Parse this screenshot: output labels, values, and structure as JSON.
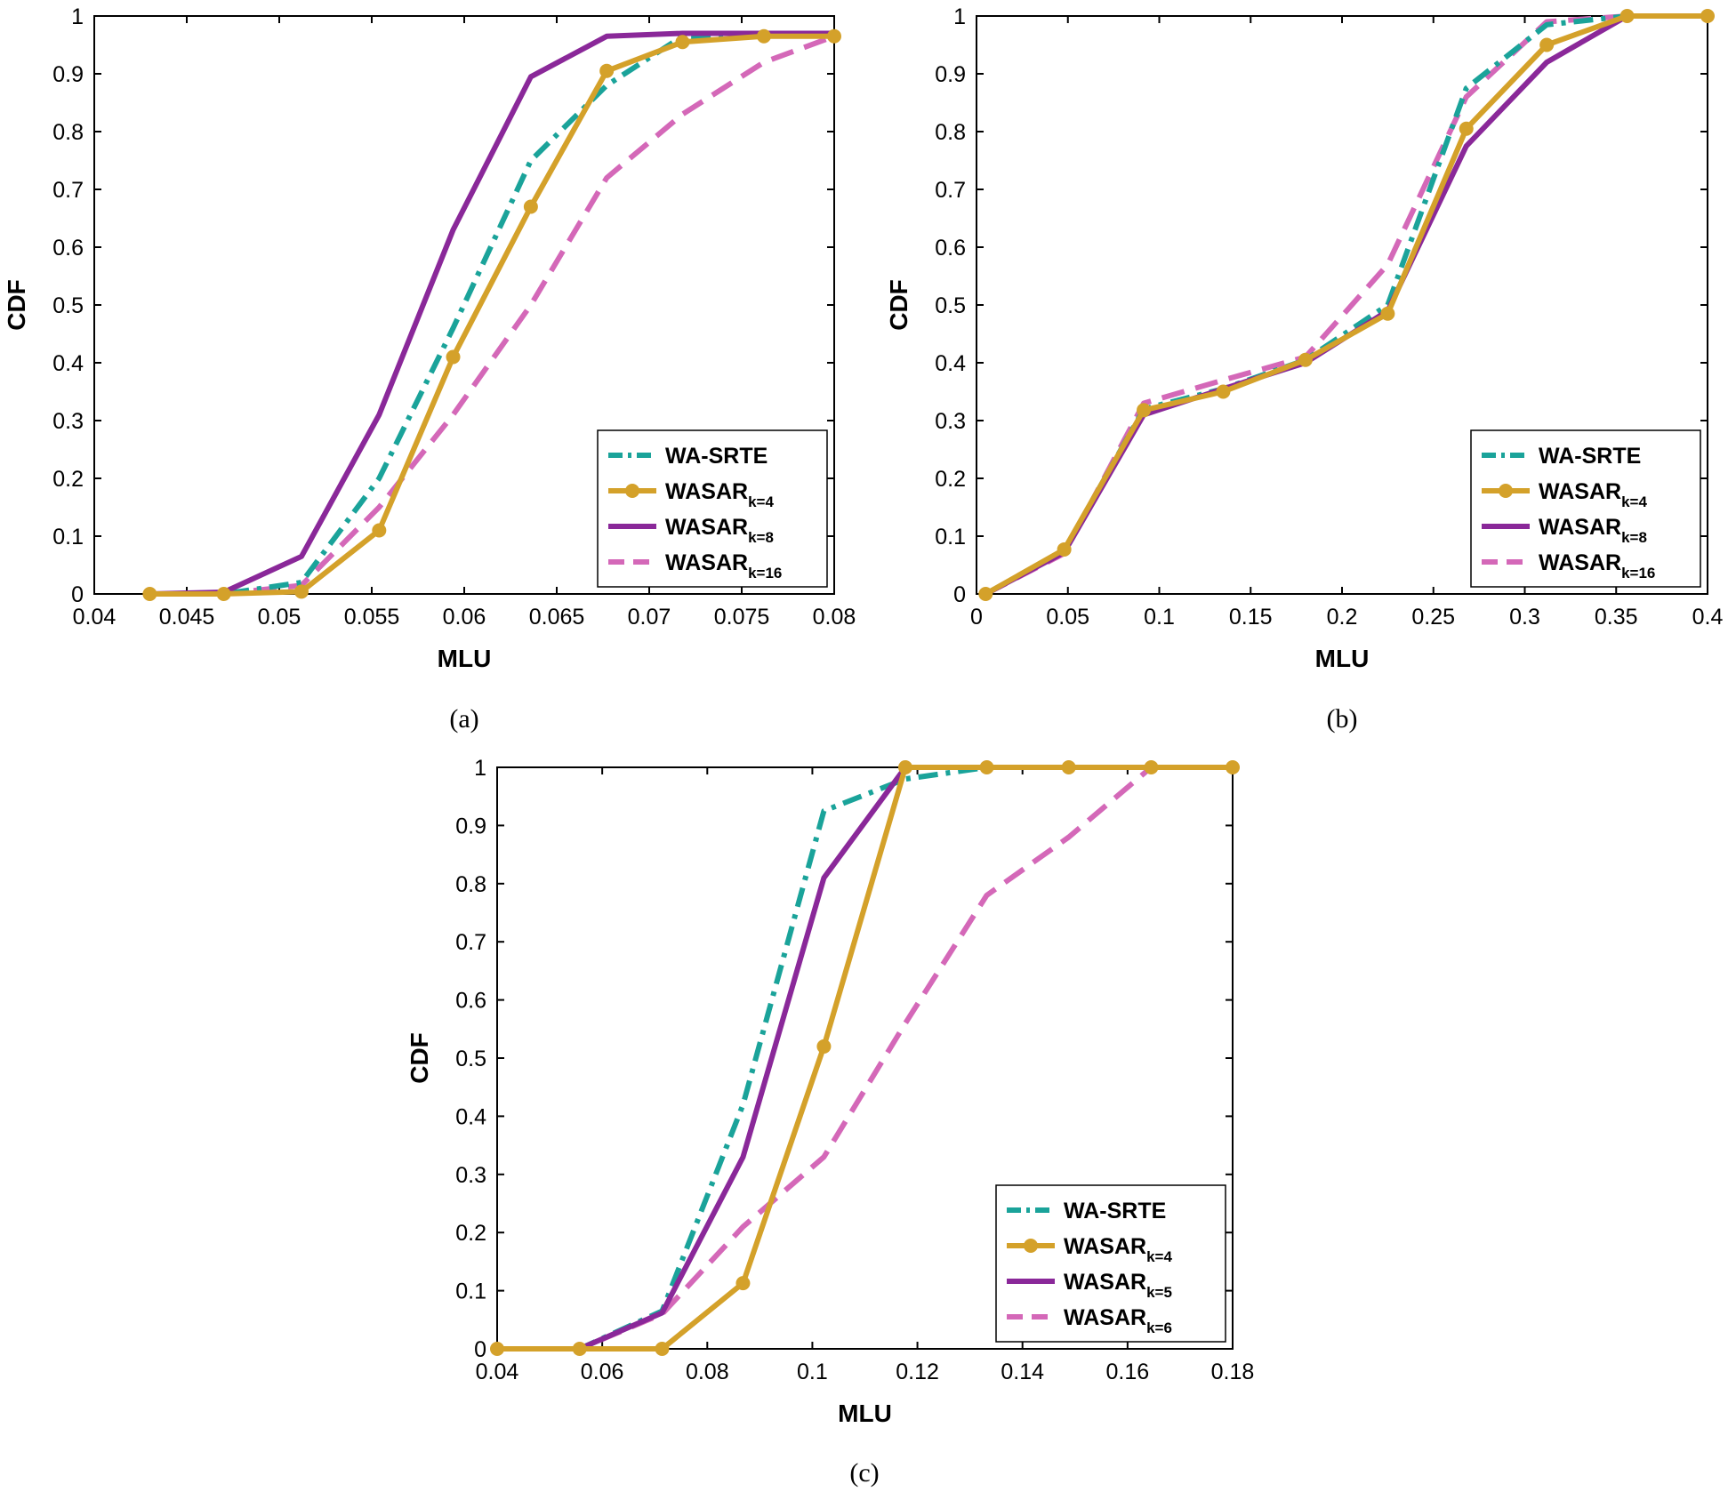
{
  "colors": {
    "wa_srte": "#1aa39a",
    "wasar_k4": "#d4a12a",
    "wasar_mid": "#8a2899",
    "wasar_high": "#d468b8"
  },
  "chart_data": [
    {
      "type": "line",
      "caption": "(a)",
      "xlabel": "MLU",
      "ylabel": "CDF",
      "xlim": [
        0.04,
        0.08
      ],
      "ylim": [
        0,
        1
      ],
      "xticks": [
        "0.04",
        "0.045",
        "0.05",
        "0.055",
        "0.06",
        "0.065",
        "0.07",
        "0.075",
        "0.08"
      ],
      "yticks": [
        "0",
        "0.1",
        "0.2",
        "0.3",
        "0.4",
        "0.5",
        "0.6",
        "0.7",
        "0.8",
        "0.9",
        "1"
      ],
      "legend_position": "bottom-right",
      "series": [
        {
          "name": "WA-SRTE",
          "sub": "",
          "style": "dashdot",
          "color_key": "wa_srte",
          "markers": false,
          "x": [
            0.043,
            0.047,
            0.0512,
            0.0554,
            0.0594,
            0.0636,
            0.0677,
            0.0718,
            0.0762,
            0.08
          ],
          "y": [
            0,
            0,
            0.02,
            0.2,
            0.46,
            0.75,
            0.88,
            0.965,
            0.965,
            0.97
          ]
        },
        {
          "name": "WASAR",
          "sub": "k=4",
          "style": "solid",
          "color_key": "wasar_k4",
          "markers": true,
          "x": [
            0.043,
            0.047,
            0.0512,
            0.0554,
            0.0594,
            0.0636,
            0.0677,
            0.0718,
            0.0762,
            0.08
          ],
          "y": [
            0,
            0,
            0.004,
            0.11,
            0.41,
            0.67,
            0.905,
            0.955,
            0.965,
            0.965
          ]
        },
        {
          "name": "WASAR",
          "sub": "k=8",
          "style": "solid",
          "color_key": "wasar_mid",
          "markers": false,
          "x": [
            0.043,
            0.047,
            0.0512,
            0.0554,
            0.0594,
            0.0636,
            0.0677,
            0.0718,
            0.0762,
            0.08
          ],
          "y": [
            0,
            0.003,
            0.065,
            0.31,
            0.63,
            0.895,
            0.965,
            0.97,
            0.97,
            0.97
          ]
        },
        {
          "name": "WASAR",
          "sub": "k=16",
          "style": "dash",
          "color_key": "wasar_high",
          "markers": false,
          "x": [
            0.043,
            0.047,
            0.0512,
            0.0554,
            0.0594,
            0.0636,
            0.0677,
            0.0718,
            0.0762,
            0.08
          ],
          "y": [
            0,
            0,
            0.015,
            0.15,
            0.31,
            0.5,
            0.72,
            0.83,
            0.92,
            0.965
          ]
        }
      ]
    },
    {
      "type": "line",
      "caption": "(b)",
      "xlabel": "MLU",
      "ylabel": "CDF",
      "xlim": [
        0,
        0.4
      ],
      "ylim": [
        0,
        1
      ],
      "xticks": [
        "0",
        "0.05",
        "0.1",
        "0.15",
        "0.2",
        "0.25",
        "0.3",
        "0.35",
        "0.4"
      ],
      "yticks": [
        "0",
        "0.1",
        "0.2",
        "0.3",
        "0.4",
        "0.5",
        "0.6",
        "0.7",
        "0.8",
        "0.9",
        "1"
      ],
      "legend_position": "bottom-right",
      "series": [
        {
          "name": "WA-SRTE",
          "sub": "",
          "style": "dashdot",
          "color_key": "wa_srte",
          "markers": false,
          "x": [
            0.005,
            0.048,
            0.0915,
            0.135,
            0.18,
            0.225,
            0.268,
            0.312,
            0.356,
            0.4
          ],
          "y": [
            0,
            0.075,
            0.32,
            0.355,
            0.405,
            0.5,
            0.875,
            0.985,
            1,
            1
          ]
        },
        {
          "name": "WASAR",
          "sub": "k=4",
          "style": "solid",
          "color_key": "wasar_k4",
          "markers": true,
          "x": [
            0.005,
            0.048,
            0.0915,
            0.135,
            0.18,
            0.225,
            0.268,
            0.312,
            0.356,
            0.4
          ],
          "y": [
            0,
            0.077,
            0.318,
            0.35,
            0.405,
            0.485,
            0.805,
            0.95,
            1,
            1
          ]
        },
        {
          "name": "WASAR",
          "sub": "k=8",
          "style": "solid",
          "color_key": "wasar_mid",
          "markers": false,
          "x": [
            0.005,
            0.048,
            0.0915,
            0.135,
            0.18,
            0.225,
            0.268,
            0.312,
            0.356,
            0.4
          ],
          "y": [
            0,
            0.072,
            0.31,
            0.355,
            0.4,
            0.49,
            0.775,
            0.92,
            1,
            1
          ]
        },
        {
          "name": "WASAR",
          "sub": "k=16",
          "style": "dash",
          "color_key": "wasar_high",
          "markers": false,
          "x": [
            0.005,
            0.048,
            0.0915,
            0.135,
            0.18,
            0.225,
            0.268,
            0.312,
            0.356,
            0.4
          ],
          "y": [
            0,
            0.07,
            0.33,
            0.37,
            0.41,
            0.57,
            0.86,
            0.99,
            1,
            1
          ]
        }
      ]
    },
    {
      "type": "line",
      "caption": "(c)",
      "xlabel": "MLU",
      "ylabel": "CDF",
      "xlim": [
        0.04,
        0.18
      ],
      "ylim": [
        0,
        1
      ],
      "xticks": [
        "0.04",
        "0.06",
        "0.08",
        "0.1",
        "0.12",
        "0.14",
        "0.16",
        "0.18"
      ],
      "yticks": [
        "0",
        "0.1",
        "0.2",
        "0.3",
        "0.4",
        "0.5",
        "0.6",
        "0.7",
        "0.8",
        "0.9",
        "1"
      ],
      "legend_position": "bottom-right",
      "series": [
        {
          "name": "WA-SRTE",
          "sub": "",
          "style": "dashdot",
          "color_key": "wa_srte",
          "markers": false,
          "x": [
            0.04,
            0.0557,
            0.0714,
            0.0868,
            0.1022,
            0.1177,
            0.1332,
            0.1488,
            0.1645,
            0.18
          ],
          "y": [
            0,
            0,
            0.065,
            0.42,
            0.925,
            0.98,
            1,
            1,
            1,
            1
          ]
        },
        {
          "name": "WASAR",
          "sub": "k=4",
          "style": "solid",
          "color_key": "wasar_k4",
          "markers": true,
          "x": [
            0.04,
            0.0557,
            0.0714,
            0.0868,
            0.1022,
            0.1177,
            0.1332,
            0.1488,
            0.1645,
            0.18
          ],
          "y": [
            0,
            0,
            0,
            0.113,
            0.52,
            1,
            1,
            1,
            1,
            1
          ]
        },
        {
          "name": "WASAR",
          "sub": "k=5",
          "style": "solid",
          "color_key": "wasar_mid",
          "markers": false,
          "x": [
            0.04,
            0.0557,
            0.0714,
            0.0868,
            0.1022,
            0.1177,
            0.1332,
            0.1488,
            0.1645,
            0.18
          ],
          "y": [
            0,
            0,
            0.062,
            0.33,
            0.81,
            1,
            1,
            1,
            1,
            1
          ]
        },
        {
          "name": "WASAR",
          "sub": "k=6",
          "style": "dash",
          "color_key": "wasar_high",
          "markers": false,
          "x": [
            0.04,
            0.0557,
            0.0714,
            0.0868,
            0.1022,
            0.1177,
            0.1332,
            0.1488,
            0.1645,
            0.18
          ],
          "y": [
            0,
            0,
            0.06,
            0.21,
            0.33,
            0.56,
            0.78,
            0.88,
            1,
            1
          ]
        }
      ]
    }
  ]
}
